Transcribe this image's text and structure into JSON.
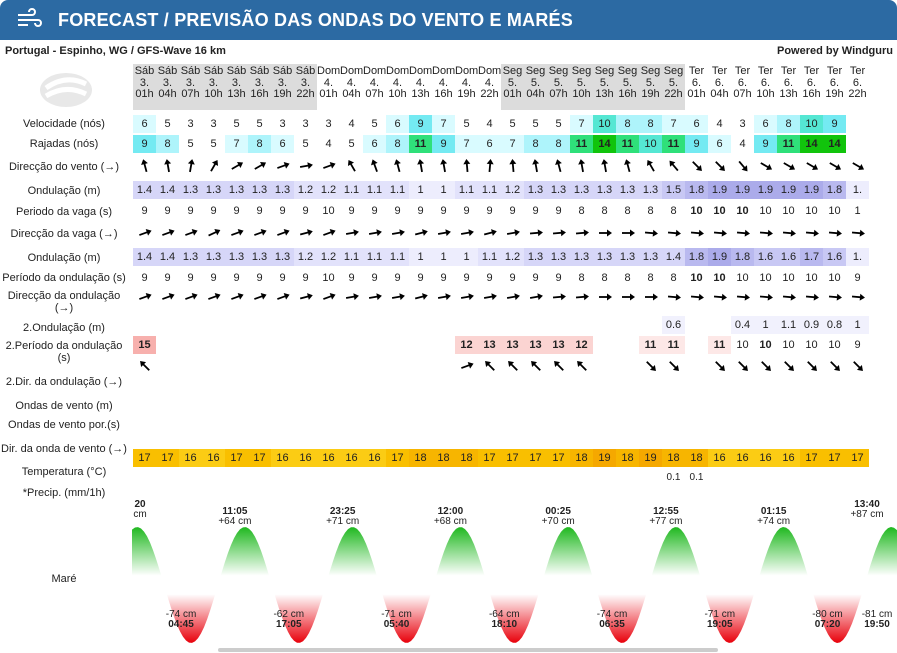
{
  "header": {
    "title": "FORECAST / PREVISÃO DAS ONDAS DO VENTO E MARÉS",
    "color": "#2c6aa3"
  },
  "location": "Portugal - Espinho, WG / GFS-Wave 16 km",
  "powered_by": "Powered by Windguru",
  "labels": {
    "wind_speed": "Velocidade (nós)",
    "gusts": "Rajadas (nós)",
    "wind_dir": "Direcção do vento (→)",
    "swell": "Ondulação (m)",
    "wave_period": "Periodo da vaga (s)",
    "wave_dir": "Direcção da vaga (→)",
    "swell2": "Ondulação (m)",
    "swell_period": "Período da ondulação (s)",
    "swell_dir": "Direcção da ondulação (→)",
    "swell_b": "2.Ondulação (m)",
    "swell_b_period": "2.Período da ondulação (s)",
    "swell_b_dir": "2.Dir. da ondulação (→)",
    "windwave": "Ondas de vento (m)",
    "windwave_period": "Ondas de vento por.(s)",
    "windwave_dir": "Dir. da onda de vento (→)",
    "temp": "Temperatura (°C)",
    "precip": "*Precip. (mm/1h)",
    "tide": "Maré"
  },
  "columns": [
    {
      "d": "Sáb",
      "n": "3.",
      "h": "01h",
      "g": 1
    },
    {
      "d": "Sáb",
      "n": "3.",
      "h": "04h",
      "g": 1
    },
    {
      "d": "Sáb",
      "n": "3.",
      "h": "07h",
      "g": 1
    },
    {
      "d": "Sáb",
      "n": "3.",
      "h": "10h",
      "g": 1
    },
    {
      "d": "Sáb",
      "n": "3.",
      "h": "13h",
      "g": 1
    },
    {
      "d": "Sáb",
      "n": "3.",
      "h": "16h",
      "g": 1
    },
    {
      "d": "Sáb",
      "n": "3.",
      "h": "19h",
      "g": 1
    },
    {
      "d": "Sáb",
      "n": "3.",
      "h": "22h",
      "g": 1
    },
    {
      "d": "Dom",
      "n": "4.",
      "h": "01h",
      "g": 0
    },
    {
      "d": "Dom",
      "n": "4.",
      "h": "04h",
      "g": 0
    },
    {
      "d": "Dom",
      "n": "4.",
      "h": "07h",
      "g": 0
    },
    {
      "d": "Dom",
      "n": "4.",
      "h": "10h",
      "g": 0
    },
    {
      "d": "Dom",
      "n": "4.",
      "h": "13h",
      "g": 0
    },
    {
      "d": "Dom",
      "n": "4.",
      "h": "16h",
      "g": 0
    },
    {
      "d": "Dom",
      "n": "4.",
      "h": "19h",
      "g": 0
    },
    {
      "d": "Dom",
      "n": "4.",
      "h": "22h",
      "g": 0
    },
    {
      "d": "Seg",
      "n": "5.",
      "h": "01h",
      "g": 1
    },
    {
      "d": "Seg",
      "n": "5.",
      "h": "04h",
      "g": 1
    },
    {
      "d": "Seg",
      "n": "5.",
      "h": "07h",
      "g": 1
    },
    {
      "d": "Seg",
      "n": "5.",
      "h": "10h",
      "g": 1
    },
    {
      "d": "Seg",
      "n": "5.",
      "h": "13h",
      "g": 1
    },
    {
      "d": "Seg",
      "n": "5.",
      "h": "16h",
      "g": 1
    },
    {
      "d": "Seg",
      "n": "5.",
      "h": "19h",
      "g": 1
    },
    {
      "d": "Seg",
      "n": "5.",
      "h": "22h",
      "g": 1
    },
    {
      "d": "Ter",
      "n": "6.",
      "h": "01h",
      "g": 0
    },
    {
      "d": "Ter",
      "n": "6.",
      "h": "04h",
      "g": 0
    },
    {
      "d": "Ter",
      "n": "6.",
      "h": "07h",
      "g": 0
    },
    {
      "d": "Ter",
      "n": "6.",
      "h": "10h",
      "g": 0
    },
    {
      "d": "Ter",
      "n": "6.",
      "h": "13h",
      "g": 0
    },
    {
      "d": "Ter",
      "n": "6.",
      "h": "16h",
      "g": 0
    },
    {
      "d": "Ter",
      "n": "6.",
      "h": "19h",
      "g": 0
    },
    {
      "d": "Ter",
      "n": "6.",
      "h": "22h",
      "g": 0
    }
  ],
  "wind_speed": [
    6,
    5,
    3,
    3,
    5,
    5,
    3,
    3,
    3,
    4,
    5,
    6,
    9,
    7,
    5,
    4,
    5,
    5,
    5,
    7,
    10,
    8,
    8,
    7,
    6,
    4,
    3,
    6,
    8,
    10,
    9,
    ""
  ],
  "gusts": [
    9,
    8,
    5,
    5,
    7,
    8,
    6,
    5,
    4,
    5,
    6,
    8,
    11,
    9,
    7,
    6,
    7,
    8,
    8,
    11,
    14,
    11,
    10,
    11,
    9,
    6,
    4,
    9,
    11,
    14,
    14,
    ""
  ],
  "wind_dir_deg": [
    -15,
    -10,
    10,
    30,
    60,
    60,
    70,
    80,
    70,
    -30,
    -20,
    -15,
    -10,
    -10,
    -5,
    5,
    -5,
    -10,
    -15,
    -10,
    -10,
    -15,
    -30,
    -40,
    135,
    135,
    140,
    120,
    120,
    120,
    120,
    120
  ],
  "swell": [
    "1.4",
    "1.4",
    "1.3",
    "1.3",
    "1.3",
    "1.3",
    "1.3",
    "1.2",
    "1.2",
    "1.1",
    "1.1",
    "1.1",
    "1",
    "1",
    "1.1",
    "1.1",
    "1.2",
    "1.3",
    "1.3",
    "1.3",
    "1.3",
    "1.3",
    "1.3",
    "1.5",
    "1.8",
    "1.9",
    "1.9",
    "1.9",
    "1.9",
    "1.9",
    "1.8",
    "1."
  ],
  "wave_period": [
    "9",
    "9",
    "9",
    "9",
    "9",
    "9",
    "9",
    "9",
    "10",
    "9",
    "9",
    "9",
    "9",
    "9",
    "9",
    "9",
    "9",
    "9",
    "9",
    "8",
    "8",
    "8",
    "8",
    "8",
    "10",
    "10",
    "10",
    "10",
    "10",
    "10",
    "10",
    "1"
  ],
  "wave_dir_deg": [
    70,
    70,
    70,
    65,
    70,
    70,
    70,
    75,
    70,
    80,
    80,
    80,
    75,
    80,
    80,
    75,
    80,
    85,
    85,
    85,
    90,
    90,
    95,
    95,
    95,
    95,
    95,
    95,
    95,
    95,
    95,
    95
  ],
  "swell2": [
    "1.4",
    "1.4",
    "1.3",
    "1.3",
    "1.3",
    "1.3",
    "1.3",
    "1.2",
    "1.2",
    "1.1",
    "1.1",
    "1.1",
    "1",
    "1",
    "1",
    "1.1",
    "1.2",
    "1.3",
    "1.3",
    "1.3",
    "1.3",
    "1.3",
    "1.3",
    "1.4",
    "1.8",
    "1.9",
    "1.8",
    "1.6",
    "1.6",
    "1.7",
    "1.6",
    "1."
  ],
  "swell_period": [
    "9",
    "9",
    "9",
    "9",
    "9",
    "9",
    "9",
    "9",
    "10",
    "9",
    "9",
    "9",
    "9",
    "9",
    "9",
    "9",
    "9",
    "9",
    "9",
    "8",
    "8",
    "8",
    "8",
    "8",
    "10",
    "10",
    "10",
    "10",
    "10",
    "10",
    "10",
    "9"
  ],
  "swell_dir_deg": [
    70,
    70,
    70,
    70,
    70,
    70,
    70,
    75,
    70,
    80,
    80,
    80,
    75,
    80,
    80,
    80,
    80,
    80,
    85,
    85,
    90,
    90,
    90,
    95,
    95,
    95,
    95,
    95,
    95,
    95,
    95,
    95
  ],
  "swell_b": [
    "",
    "",
    "",
    "",
    "",
    "",
    "",
    "",
    "",
    "",
    "",
    "",
    "",
    "",
    "",
    "",
    "",
    "",
    "",
    "",
    "",
    "",
    "",
    "0.6",
    "",
    "",
    "0.4",
    "1",
    "1.1",
    "0.9",
    "0.8",
    "1"
  ],
  "swell_b_period": [
    "15",
    "",
    "",
    "",
    "",
    "",
    "",
    "",
    "",
    "",
    "",
    "",
    "",
    "",
    "12",
    "13",
    "13",
    "13",
    "13",
    "12",
    "",
    "",
    "11",
    "11",
    "",
    "11",
    "10",
    "10",
    "10",
    "10",
    "10",
    "9"
  ],
  "swell_b_dir_deg": [
    -45,
    null,
    null,
    null,
    null,
    null,
    null,
    null,
    null,
    null,
    null,
    null,
    null,
    null,
    70,
    -45,
    -45,
    -45,
    -45,
    -45,
    null,
    null,
    135,
    135,
    null,
    135,
    135,
    135,
    135,
    135,
    135,
    135
  ],
  "windwave_dir": [
    17,
    17,
    16,
    16,
    17,
    17,
    16,
    16,
    16,
    16,
    16,
    17,
    18,
    18,
    18,
    17,
    17,
    17,
    17,
    18,
    19,
    18,
    19,
    18,
    18,
    16,
    16,
    16,
    16,
    17,
    17,
    17
  ],
  "precip": [
    "",
    "",
    "",
    "",
    "",
    "",
    "",
    "",
    "",
    "",
    "",
    "",
    "",
    "",
    "",
    "",
    "",
    "",
    "",
    "",
    "",
    "",
    "",
    "0.1",
    "0.1",
    "",
    "",
    "",
    "",
    "",
    "",
    ""
  ],
  "tide": {
    "highs": [
      {
        "t": "20",
        "h": "cm",
        "col": 0
      },
      {
        "t": "11:05",
        "h": "+64 cm",
        "col": 4
      },
      {
        "t": "23:25",
        "h": "+71 cm",
        "col": 8.5
      },
      {
        "t": "12:00",
        "h": "+68 cm",
        "col": 13
      },
      {
        "t": "00:25",
        "h": "+70 cm",
        "col": 17.5
      },
      {
        "t": "12:55",
        "h": "+77 cm",
        "col": 21.5
      },
      {
        "t": "01:15",
        "h": "+74 cm",
        "col": 26
      },
      {
        "t": "13:40",
        "h": "+87 cm",
        "col": 30
      }
    ],
    "lows": [
      {
        "h": "-74 cm",
        "t": "04:45"
      },
      {
        "h": "-62 cm",
        "t": "17:05"
      },
      {
        "h": "-71 cm",
        "t": "05:40"
      },
      {
        "h": "-64 cm",
        "t": "18:10"
      },
      {
        "h": "-74 cm",
        "t": "06:35"
      },
      {
        "h": "-71 cm",
        "t": "19:05"
      },
      {
        "h": "-80 cm",
        "t": "07:20"
      },
      {
        "h": "-81 cm",
        "t": "19:50"
      }
    ]
  }
}
